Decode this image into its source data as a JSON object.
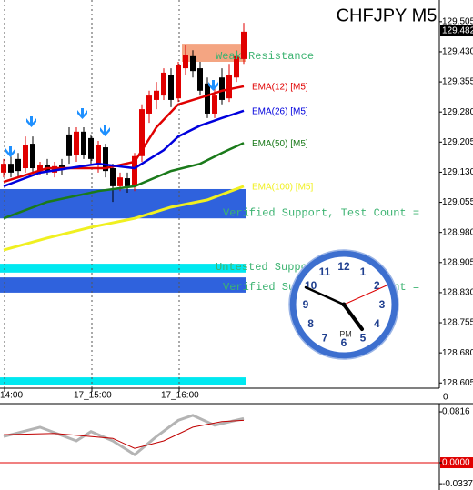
{
  "chart_data": {
    "type": "candlestick",
    "title": "CHFJPY M5",
    "ylim": [
      128.592,
      129.559
    ],
    "yticks": [
      129.505,
      {
        "value": 129.43,
        "label": "129.430"
      },
      129.355,
      {
        "value": 129.28,
        "label": "129.280"
      },
      129.205,
      {
        "value": 129.13,
        "label": "129.130"
      },
      129.055,
      {
        "value": 128.98,
        "label": "128.980"
      },
      128.905,
      {
        "value": 128.83,
        "label": "128.830"
      },
      128.755,
      {
        "value": 128.68,
        "label": "128.680"
      },
      128.605
    ],
    "xticks": [
      {
        "value": 0,
        "label": "14:00"
      },
      {
        "value": 12,
        "label": "17_15:00"
      },
      {
        "value": 24,
        "label": "17_16:00"
      }
    ],
    "current_price": 129.482,
    "bull_color": "#e00000",
    "bear_color": "#000000",
    "open": [
      129.129,
      129.151,
      129.163,
      129.14,
      129.201,
      129.133,
      129.147,
      129.129,
      129.147,
      129.224,
      129.174,
      129.231,
      129.215,
      129.151,
      129.192,
      129.14,
      129.095,
      129.115,
      129.095,
      129.17,
      129.276,
      129.31,
      129.321,
      129.373,
      129.314,
      129.389,
      129.419,
      129.389,
      129.351,
      129.276,
      129.366,
      129.314,
      129.366,
      129.412
    ],
    "high": [
      129.163,
      129.169,
      129.178,
      129.219,
      129.219,
      129.156,
      129.163,
      129.156,
      129.163,
      129.242,
      129.242,
      129.242,
      129.224,
      129.208,
      129.201,
      129.151,
      129.129,
      129.129,
      129.178,
      129.299,
      129.333,
      129.355,
      129.389,
      129.389,
      129.405,
      129.446,
      129.434,
      129.405,
      129.366,
      129.344,
      129.389,
      129.4,
      129.434,
      129.502
    ],
    "low": [
      129.117,
      129.117,
      129.117,
      129.129,
      129.129,
      129.124,
      129.124,
      129.117,
      129.124,
      129.151,
      129.156,
      129.163,
      129.151,
      129.129,
      129.117,
      129.056,
      129.083,
      129.079,
      129.083,
      129.156,
      129.253,
      129.287,
      129.31,
      129.292,
      129.305,
      129.373,
      129.366,
      129.321,
      129.265,
      129.265,
      129.299,
      129.305,
      129.355,
      129.4
    ],
    "close": [
      129.151,
      129.129,
      129.133,
      129.197,
      129.14,
      129.147,
      129.133,
      129.145,
      129.138,
      129.17,
      129.231,
      129.174,
      129.163,
      129.197,
      129.133,
      129.095,
      129.117,
      129.095,
      129.17,
      129.287,
      129.321,
      129.333,
      129.378,
      129.31,
      129.396,
      129.423,
      129.382,
      129.333,
      129.276,
      129.321,
      129.31,
      129.373,
      129.419,
      129.48
    ],
    "series": [
      {
        "name": "EMA(12) [M5]",
        "color": "#e00000",
        "x": [
          0,
          6,
          14,
          18,
          21,
          24,
          28,
          30,
          33
        ],
        "values": [
          129.106,
          129.14,
          129.14,
          129.156,
          129.242,
          129.299,
          129.321,
          129.333,
          129.344
        ]
      },
      {
        "name": "EMA(26) [M5]",
        "color": "#0000dd",
        "x": [
          0,
          5,
          13,
          18,
          22,
          24,
          27,
          30,
          33
        ],
        "values": [
          129.095,
          129.129,
          129.151,
          129.14,
          129.185,
          129.219,
          129.246,
          129.265,
          129.283
        ]
      },
      {
        "name": "EMA(50) [M5]",
        "color": "#1a7a1a",
        "x": [
          0,
          6,
          13,
          18,
          23,
          27,
          30,
          33
        ],
        "values": [
          129.015,
          129.056,
          129.083,
          129.095,
          129.133,
          129.151,
          129.178,
          129.203
        ]
      },
      {
        "name": "EMA(100) [M5]",
        "color": "#f0f020",
        "x": [
          0,
          6,
          12,
          18,
          23,
          28,
          33
        ],
        "values": [
          128.936,
          128.966,
          128.993,
          129.015,
          129.043,
          129.061,
          129.095
        ]
      }
    ],
    "zones": [
      {
        "label": "Weak Resistance",
        "from": 129.405,
        "to": 129.45,
        "color": "#f4a582",
        "from_candle": 25
      },
      {
        "label": "Verified Support, Test Count =",
        "from": 129.015,
        "to": 129.088,
        "color": "#2f62dd",
        "from_candle": 0
      },
      {
        "label": "Untested Support",
        "from": 128.88,
        "to": 128.902,
        "color": "#00e8f0",
        "from_candle": 0
      },
      {
        "label": "Verified Support, Test Count =",
        "from": 128.83,
        "to": 128.868,
        "color": "#2f62dd",
        "from_candle": 0
      },
      {
        "from": 128.601,
        "to": 128.619,
        "color": "#00e8f0",
        "from_candle": 0
      }
    ],
    "oscillator": {
      "label": "0",
      "ylim": [
        -0.0437,
        0.0933
      ],
      "yticks": [
        0.0816,
        {
          "value": 0,
          "label": "0.0000"
        },
        -0.0337
      ],
      "series": [
        {
          "color": "#b4b4b4",
          "x": [
            0,
            5,
            10,
            12,
            15,
            18,
            21,
            24,
            26,
            29,
            33
          ],
          "values": [
            0.042,
            0.057,
            0.035,
            0.05,
            0.035,
            0.013,
            0.042,
            0.068,
            0.076,
            0.06,
            0.071
          ]
        },
        {
          "color": "#c00000",
          "x": [
            0,
            7,
            15,
            18,
            22,
            26,
            30,
            33
          ],
          "values": [
            0.045,
            0.047,
            0.039,
            0.023,
            0.035,
            0.057,
            0.066,
            0.068
          ]
        }
      ]
    },
    "clock": {
      "numerals": [
        "12",
        "1",
        "2",
        "3",
        "4",
        "5",
        "6",
        "7",
        "8",
        "9",
        "10",
        "11"
      ],
      "period": "PM"
    }
  }
}
